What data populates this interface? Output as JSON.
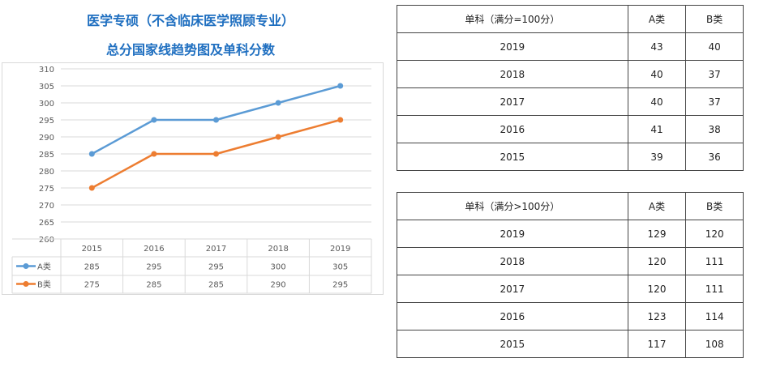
{
  "title_line1": "医学专硕（不含临床医学照顾专业）",
  "title_line2": "总分国家线趋势图及单科分数",
  "chart_data": {
    "type": "line",
    "categories": [
      "2015",
      "2016",
      "2017",
      "2018",
      "2019"
    ],
    "series": [
      {
        "name": "A类",
        "values": [
          285,
          295,
          295,
          300,
          305
        ],
        "color": "#5b9bd5"
      },
      {
        "name": "B类",
        "values": [
          275,
          285,
          285,
          290,
          295
        ],
        "color": "#ed7d31"
      }
    ],
    "ylim": [
      260,
      310
    ],
    "yticks": [
      "260",
      "265",
      "270",
      "275",
      "280",
      "285",
      "290",
      "295",
      "300",
      "305",
      "310"
    ],
    "grid": true,
    "legend": "data-table",
    "data_table": true
  },
  "table1": {
    "header": [
      "单科（满分=100分）",
      "A类",
      "B类"
    ],
    "rows": [
      [
        "2019",
        "43",
        "40"
      ],
      [
        "2018",
        "40",
        "37"
      ],
      [
        "2017",
        "40",
        "37"
      ],
      [
        "2016",
        "41",
        "38"
      ],
      [
        "2015",
        "39",
        "36"
      ]
    ]
  },
  "table2": {
    "header": [
      "单科（满分>100分）",
      "A类",
      "B类"
    ],
    "rows": [
      [
        "2019",
        "129",
        "120"
      ],
      [
        "2018",
        "120",
        "111"
      ],
      [
        "2017",
        "120",
        "111"
      ],
      [
        "2016",
        "123",
        "114"
      ],
      [
        "2015",
        "117",
        "108"
      ]
    ]
  }
}
